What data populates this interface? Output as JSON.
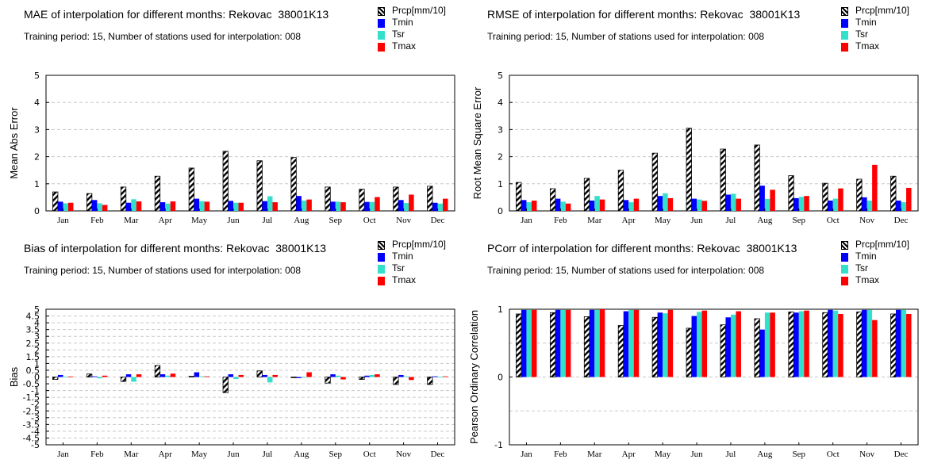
{
  "colors": {
    "Prcp": "hatch",
    "Tmin": "#0000ff",
    "Tsr": "#33e0cc",
    "Tmax": "#ff0000",
    "grid": "#c8c8c8"
  },
  "legend": [
    "Prcp[mm/10]",
    "Tmin",
    "Tsr",
    "Tmax"
  ],
  "chart_data": [
    {
      "type": "bar",
      "title": "MAE of interpolation for different months: Rekovac  38001K13",
      "subtitle": "Training period: 15, Number of stations used for interpolation: 008",
      "ylabel": "Mean Abs Error",
      "ylim": [
        0,
        5
      ],
      "yticks": [
        "0",
        "1",
        "2",
        "3",
        "4",
        "5"
      ],
      "ytick_values": [
        0,
        1,
        2,
        3,
        4,
        5
      ],
      "grid": true,
      "legend_position": "top-right",
      "categories": [
        "Jan",
        "Feb",
        "Mar",
        "Apr",
        "May",
        "Jun",
        "Jul",
        "Aug",
        "Sep",
        "Oct",
        "Nov",
        "Dec"
      ],
      "series": [
        {
          "name": "Prcp[mm/10]",
          "values": [
            0.7,
            0.64,
            0.88,
            1.28,
            1.58,
            2.2,
            1.85,
            1.97,
            0.88,
            0.8,
            0.88,
            0.91
          ]
        },
        {
          "name": "Tmin",
          "values": [
            0.34,
            0.4,
            0.3,
            0.32,
            0.45,
            0.37,
            0.36,
            0.55,
            0.34,
            0.33,
            0.4,
            0.3
          ]
        },
        {
          "name": "Tsr",
          "values": [
            0.28,
            0.28,
            0.43,
            0.27,
            0.36,
            0.3,
            0.54,
            0.38,
            0.34,
            0.33,
            0.29,
            0.27
          ]
        },
        {
          "name": "Tmax",
          "values": [
            0.3,
            0.22,
            0.35,
            0.35,
            0.34,
            0.3,
            0.32,
            0.42,
            0.32,
            0.51,
            0.6,
            0.45
          ]
        }
      ]
    },
    {
      "type": "bar",
      "title": "RMSE of interpolation for different months: Rekovac  38001K13",
      "subtitle": "Training period: 15, Number of stations used for interpolation: 008",
      "ylabel": "Root Mean Square Error",
      "ylim": [
        0,
        5
      ],
      "yticks": [
        "0",
        "1",
        "2",
        "3",
        "4",
        "5"
      ],
      "ytick_values": [
        0,
        1,
        2,
        3,
        4,
        5
      ],
      "grid": true,
      "legend_position": "top-right",
      "categories": [
        "Jan",
        "Feb",
        "Mar",
        "Apr",
        "May",
        "Jun",
        "Jul",
        "Aug",
        "Sep",
        "Oct",
        "Nov",
        "Dec"
      ],
      "series": [
        {
          "name": "Prcp[mm/10]",
          "values": [
            1.05,
            0.82,
            1.2,
            1.5,
            2.13,
            3.05,
            2.28,
            2.43,
            1.3,
            1.02,
            1.17,
            1.28
          ]
        },
        {
          "name": "Tmin",
          "values": [
            0.4,
            0.45,
            0.38,
            0.4,
            0.55,
            0.45,
            0.6,
            0.93,
            0.47,
            0.38,
            0.5,
            0.38
          ]
        },
        {
          "name": "Tsr",
          "values": [
            0.32,
            0.34,
            0.55,
            0.32,
            0.65,
            0.42,
            0.63,
            0.44,
            0.52,
            0.45,
            0.38,
            0.32
          ]
        },
        {
          "name": "Tmax",
          "values": [
            0.38,
            0.27,
            0.42,
            0.45,
            0.47,
            0.37,
            0.45,
            0.78,
            0.55,
            0.83,
            1.7,
            0.85
          ]
        }
      ]
    },
    {
      "type": "bar",
      "title": "Bias of interpolation for different months: Rekovac  38001K13",
      "subtitle": "Training period: 15, Number of stations used for interpolation: 008",
      "ylabel": "Bias",
      "ylim": [
        -5,
        5
      ],
      "yticks": [
        "5",
        "4.5",
        "4",
        "3.5",
        "3",
        "2.5",
        "2",
        "1.5",
        "1",
        "0.5",
        "0",
        "-0.5",
        "-1",
        "-1.5",
        "-2",
        "-2.5",
        "-3",
        "-3.5",
        "-4",
        "-4.5",
        "-5"
      ],
      "ytick_values": [
        5,
        4.5,
        4,
        3.5,
        3,
        2.5,
        2,
        1.5,
        1,
        0.5,
        0,
        -0.5,
        -1,
        -1.5,
        -2,
        -2.5,
        -3,
        -3.5,
        -4,
        -4.5,
        -5
      ],
      "grid": true,
      "legend_position": "top-right",
      "categories": [
        "Jan",
        "Feb",
        "Mar",
        "Apr",
        "May",
        "Jun",
        "Jul",
        "Aug",
        "Sep",
        "Oct",
        "Nov",
        "Dec"
      ],
      "series": [
        {
          "name": "Prcp[mm/10]",
          "values": [
            -0.18,
            0.22,
            -0.33,
            0.85,
            0.05,
            -1.15,
            0.45,
            -0.05,
            -0.45,
            -0.18,
            -0.55,
            -0.55
          ]
        },
        {
          "name": "Tmin",
          "values": [
            0.15,
            0.05,
            0.2,
            0.2,
            0.35,
            0.2,
            0.15,
            -0.08,
            0.2,
            0.1,
            0.15,
            0.05
          ]
        },
        {
          "name": "Tsr",
          "values": [
            0.03,
            -0.1,
            -0.35,
            0.1,
            0.05,
            -0.15,
            -0.4,
            0.0,
            0.1,
            0.15,
            0.05,
            0.03
          ]
        },
        {
          "name": "Tmax",
          "values": [
            0.04,
            0.1,
            0.2,
            0.25,
            0.05,
            0.15,
            0.15,
            0.35,
            -0.18,
            0.2,
            -0.22,
            0.05
          ]
        }
      ]
    },
    {
      "type": "bar",
      "title": "PCorr of interpolation for different months: Rekovac  38001K13",
      "subtitle": "Training period: 15, Number of stations used for interpolation: 008",
      "ylabel": "Pearson Ordinary Correlation",
      "ylim": [
        -1,
        1
      ],
      "yticks": [
        "1",
        "0",
        "-1"
      ],
      "ytick_values": [
        1,
        0,
        -1
      ],
      "grid": true,
      "legend_position": "top-right",
      "categories": [
        "Jan",
        "Feb",
        "Mar",
        "Apr",
        "May",
        "Jun",
        "Jul",
        "Aug",
        "Sep",
        "Oct",
        "Nov",
        "Dec"
      ],
      "series": [
        {
          "name": "Prcp[mm/10]",
          "values": [
            0.93,
            0.95,
            0.89,
            0.76,
            0.88,
            0.72,
            0.77,
            0.86,
            0.96,
            0.95,
            0.96,
            0.93
          ]
        },
        {
          "name": "Tmin",
          "values": [
            0.99,
            0.99,
            0.99,
            0.97,
            0.95,
            0.9,
            0.88,
            0.7,
            0.95,
            0.99,
            0.99,
            0.99
          ]
        },
        {
          "name": "Tsr",
          "values": [
            0.99,
            0.99,
            0.99,
            0.99,
            0.94,
            0.96,
            0.92,
            0.95,
            0.97,
            0.98,
            0.99,
            0.99
          ]
        },
        {
          "name": "Tmax",
          "values": [
            0.99,
            0.99,
            1.0,
            0.99,
            0.99,
            0.98,
            0.97,
            0.95,
            0.98,
            0.93,
            0.84,
            0.93
          ]
        }
      ]
    }
  ]
}
